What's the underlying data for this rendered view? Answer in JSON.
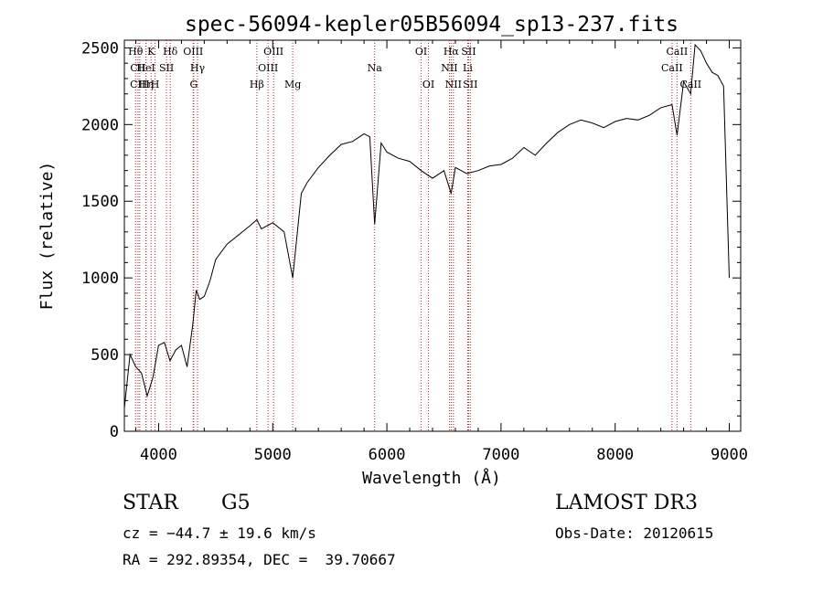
{
  "chart_data": {
    "type": "line",
    "title": "spec-56094-kepler05B56094_sp13-237.fits",
    "xlabel": "Wavelength (Å)",
    "ylabel": "Flux (relative)",
    "xlim": [
      3700,
      9100
    ],
    "ylim": [
      0,
      2550
    ],
    "xticks": [
      4000,
      5000,
      6000,
      7000,
      8000,
      9000
    ],
    "xtick_labels": [
      "4000",
      "5000",
      "6000",
      "7000",
      "8000",
      "9000"
    ],
    "yticks": [
      0,
      500,
      1000,
      1500,
      2000,
      2500
    ],
    "ytick_labels": [
      "0",
      "500",
      "1000",
      "1500",
      "2000",
      "2500"
    ],
    "series": [
      {
        "name": "flux",
        "x": [
          3700,
          3750,
          3800,
          3850,
          3900,
          3950,
          4000,
          4050,
          4100,
          4150,
          4200,
          4250,
          4300,
          4330,
          4360,
          4400,
          4450,
          4500,
          4600,
          4700,
          4800,
          4861,
          4900,
          5000,
          5100,
          5175,
          5250,
          5300,
          5400,
          5500,
          5600,
          5700,
          5800,
          5850,
          5893,
          5950,
          6000,
          6100,
          6200,
          6300,
          6400,
          6500,
          6563,
          6600,
          6700,
          6800,
          6900,
          7000,
          7100,
          7200,
          7300,
          7400,
          7500,
          7600,
          7700,
          7800,
          7900,
          8000,
          8100,
          8200,
          8300,
          8400,
          8498,
          8542,
          8600,
          8662,
          8700,
          8750,
          8800,
          8850,
          8900,
          8950,
          9000
        ],
        "values": [
          150,
          500,
          420,
          380,
          230,
          350,
          560,
          580,
          460,
          530,
          560,
          420,
          700,
          920,
          860,
          880,
          980,
          1120,
          1220,
          1280,
          1340,
          1380,
          1320,
          1360,
          1300,
          1000,
          1550,
          1620,
          1720,
          1800,
          1870,
          1890,
          1940,
          1920,
          1350,
          1880,
          1820,
          1780,
          1760,
          1700,
          1650,
          1700,
          1550,
          1720,
          1680,
          1700,
          1730,
          1740,
          1780,
          1850,
          1800,
          1880,
          1950,
          2000,
          2030,
          2010,
          1980,
          2020,
          2040,
          2030,
          2060,
          2110,
          2130,
          1930,
          2280,
          2200,
          2520,
          2480,
          2400,
          2340,
          2320,
          2250,
          1000
        ]
      }
    ],
    "lines": [
      {
        "label": "Hθ",
        "wl": 3798,
        "row": 0
      },
      {
        "label": "CII",
        "wl": 3820,
        "row": 1
      },
      {
        "label": "CIII",
        "wl": 3835,
        "row": 2
      },
      {
        "label": "HeI",
        "wl": 3889,
        "row": 1
      },
      {
        "label": "Hη",
        "wl": 3890,
        "row": 2
      },
      {
        "label": "K",
        "wl": 3934,
        "row": 0
      },
      {
        "label": "H",
        "wl": 3969,
        "row": 2
      },
      {
        "label": "SII",
        "wl": 4069,
        "row": 1
      },
      {
        "label": "Hδ",
        "wl": 4102,
        "row": 0
      },
      {
        "label": "OIII",
        "wl": 4303,
        "row": 0
      },
      {
        "label": "G",
        "wl": 4308,
        "row": 2
      },
      {
        "label": "Hγ",
        "wl": 4341,
        "row": 1
      },
      {
        "label": "Hβ",
        "wl": 4861,
        "row": 2
      },
      {
        "label": "OIII",
        "wl": 4959,
        "row": 1
      },
      {
        "label": "OIII",
        "wl": 5007,
        "row": 0
      },
      {
        "label": "Mg",
        "wl": 5175,
        "row": 2
      },
      {
        "label": "Na",
        "wl": 5893,
        "row": 1
      },
      {
        "label": "OI",
        "wl": 6300,
        "row": 0
      },
      {
        "label": "OI",
        "wl": 6364,
        "row": 2
      },
      {
        "label": "NII",
        "wl": 6548,
        "row": 1
      },
      {
        "label": "Hα",
        "wl": 6563,
        "row": 0
      },
      {
        "label": "NII",
        "wl": 6583,
        "row": 2
      },
      {
        "label": "SII",
        "wl": 6716,
        "row": 0
      },
      {
        "label": "Li",
        "wl": 6708,
        "row": 1
      },
      {
        "label": "SII",
        "wl": 6731,
        "row": 2
      },
      {
        "label": "CaII",
        "wl": 8498,
        "row": 1
      },
      {
        "label": "CaII",
        "wl": 8542,
        "row": 0
      },
      {
        "label": "CaII",
        "wl": 8662,
        "row": 2
      }
    ]
  },
  "meta": {
    "object_class": "STAR",
    "subclass": "G5",
    "survey": "LAMOST DR3",
    "redshift": "cz = −44.7 ± 19.6 km/s",
    "obs_date": "Obs-Date: 20120615",
    "coords": "RA = 292.89354, DEC =  39.70667"
  },
  "colors": {
    "line_marker": "#b22222",
    "spectrum": "#000000"
  }
}
